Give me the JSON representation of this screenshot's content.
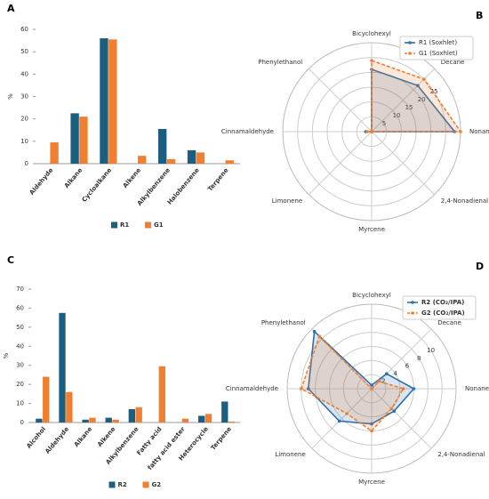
{
  "chart_data": [
    {
      "type": "bar",
      "label": "A",
      "ylabel": "%",
      "categories": [
        "Aldehyde",
        "Alkane",
        "Cycloalkane",
        "Alkene",
        "Alkylbenzene",
        "Halobenzene",
        "Terpene"
      ],
      "series": [
        {
          "name": "R1",
          "color": "#1b5f80",
          "values": [
            0,
            22.5,
            56,
            0,
            15.5,
            6,
            0
          ]
        },
        {
          "name": "G1",
          "color": "#f07f32",
          "values": [
            9.5,
            21,
            55.5,
            3.5,
            2,
            5,
            1.5
          ]
        }
      ],
      "ylim": [
        0,
        60
      ],
      "yticks": [
        0,
        10,
        20,
        30,
        40,
        50,
        60
      ],
      "legend": "bottom"
    },
    {
      "type": "radar",
      "label": "B",
      "categories": [
        "Bicyclohexyl",
        "Decane",
        "Nonane",
        "2,4-Nonadienal",
        "Myrcene",
        "Limonene",
        "Cinnamaldehyde",
        "Phenylethanol"
      ],
      "series": [
        {
          "name": "R1 (Soxhlet)",
          "color": "#2e6fae",
          "values": [
            21,
            22,
            28,
            0,
            0,
            0,
            2,
            0
          ]
        },
        {
          "name": "G1 (Soxhlet)",
          "color": "#f07f32",
          "values": [
            24,
            25,
            30,
            0,
            0,
            0,
            1.5,
            0
          ]
        }
      ],
      "rlim": [
        0,
        30
      ],
      "rticks": [
        5,
        10,
        15,
        20,
        25
      ],
      "legend": "upper right"
    },
    {
      "type": "bar",
      "label": "C",
      "ylabel": "%",
      "categories": [
        "Alcohol",
        "Aldehyde",
        "Alkane",
        "Alkene",
        "Alkylbenzene",
        "Fatty acid",
        "fatty acid ester",
        "Heterocycle",
        "Terpene"
      ],
      "series": [
        {
          "name": "R2",
          "color": "#1b5f80",
          "values": [
            2,
            57.5,
            1.5,
            2.5,
            7,
            0,
            0,
            3.5,
            11
          ]
        },
        {
          "name": "G2",
          "color": "#f07f32",
          "values": [
            24,
            16,
            2.5,
            1.5,
            8,
            29.5,
            2,
            4.5,
            0.5
          ]
        }
      ],
      "ylim": [
        0,
        70
      ],
      "yticks": [
        0,
        10,
        20,
        30,
        40,
        50,
        60,
        70
      ],
      "legend": "bottom"
    },
    {
      "type": "radar",
      "label": "D",
      "categories": [
        "Bicyclohexyl",
        "Decane",
        "Nonane",
        "2,4-Nonadienal",
        "Myrcene",
        "Limonene",
        "Cinnamaldehyde",
        "Phenylethanol"
      ],
      "series": [
        {
          "name": "R2 (CO₂/IPA)",
          "color": "#2e6fae",
          "values": [
            0.5,
            3,
            6,
            4.5,
            5,
            6.5,
            9,
            11.5
          ]
        },
        {
          "name": "G2 (CO₂/IPA)",
          "color": "#f07f32",
          "values": [
            0,
            1.5,
            4.5,
            4,
            6,
            5,
            10,
            10.5
          ]
        }
      ],
      "rlim": [
        0,
        12
      ],
      "rticks": [
        2,
        4,
        6,
        8,
        10
      ],
      "legend": "upper right"
    }
  ]
}
